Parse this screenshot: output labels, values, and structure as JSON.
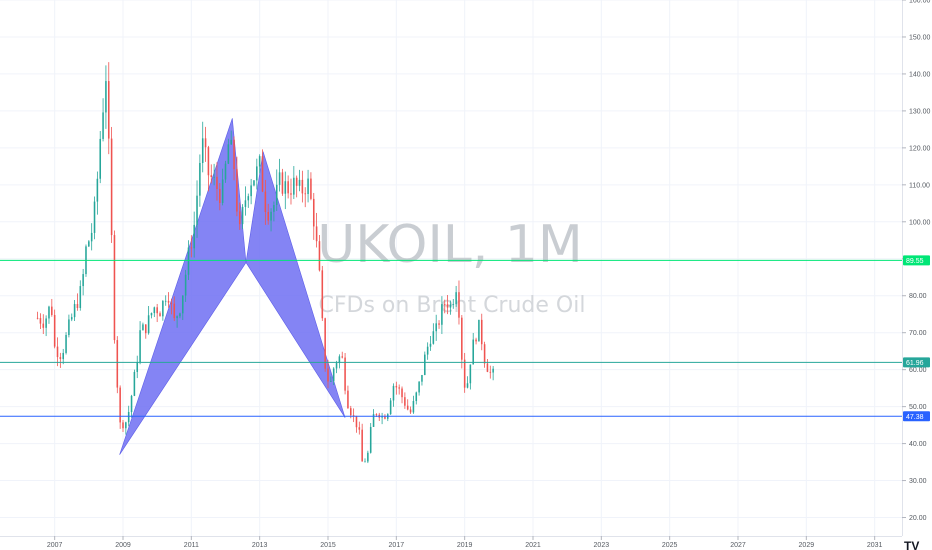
{
  "watermark": {
    "symbol": "UKOIL, 1M",
    "description": "CFDs on Brent Crude Oil"
  },
  "colors": {
    "up": "#26a69a",
    "down": "#ef5350",
    "pattern_fill": "#6f6ff2",
    "line_green": "#00e676",
    "line_teal": "#26a69a",
    "line_blue": "#2962ff"
  },
  "chart_data": {
    "type": "candlestick",
    "x_range": [
      2005.4,
      2031.8
    ],
    "y_range": [
      15,
      160
    ],
    "x_ticks": [
      "2007",
      "2009",
      "2011",
      "2013",
      "2015",
      "2017",
      "2019",
      "2021",
      "2023",
      "2025",
      "2027",
      "2029",
      "2031"
    ],
    "y_ticks": [
      "20.00",
      "30.00",
      "40.00",
      "50.00",
      "60.00",
      "70.00",
      "80.00",
      "90.00",
      "100.00",
      "110.00",
      "120.00",
      "130.00",
      "140.00",
      "150.00",
      "160.00"
    ],
    "horizontal_lines": [
      {
        "name": "line-green",
        "value": 89.55,
        "label": "89.55",
        "color": "#00e676"
      },
      {
        "name": "line-teal",
        "value": 61.96,
        "label": "61.96",
        "color": "#26a69a"
      },
      {
        "name": "line-blue",
        "value": 47.38,
        "label": "47.38",
        "color": "#2962ff"
      }
    ],
    "pattern_points": [
      {
        "t": 2008.9,
        "v": 37
      },
      {
        "t": 2012.2,
        "v": 128
      },
      {
        "t": 2012.6,
        "v": 89
      },
      {
        "t": 2013.1,
        "v": 119
      },
      {
        "t": 2015.5,
        "v": 47
      }
    ],
    "closes": [
      {
        "t": 2006.5,
        "v": 74
      },
      {
        "t": 2006.7,
        "v": 73
      },
      {
        "t": 2006.9,
        "v": 78
      },
      {
        "t": 2007.0,
        "v": 66
      },
      {
        "t": 2007.2,
        "v": 64
      },
      {
        "t": 2007.4,
        "v": 71
      },
      {
        "t": 2007.6,
        "v": 77
      },
      {
        "t": 2007.8,
        "v": 82
      },
      {
        "t": 2007.9,
        "v": 92
      },
      {
        "t": 2008.1,
        "v": 98
      },
      {
        "t": 2008.2,
        "v": 105
      },
      {
        "t": 2008.35,
        "v": 125
      },
      {
        "t": 2008.5,
        "v": 140
      },
      {
        "t": 2008.6,
        "v": 115
      },
      {
        "t": 2008.75,
        "v": 70
      },
      {
        "t": 2008.9,
        "v": 45
      },
      {
        "t": 2009.1,
        "v": 46
      },
      {
        "t": 2009.2,
        "v": 50
      },
      {
        "t": 2009.4,
        "v": 62
      },
      {
        "t": 2009.5,
        "v": 70
      },
      {
        "t": 2009.7,
        "v": 72
      },
      {
        "t": 2009.9,
        "v": 77
      },
      {
        "t": 2010.1,
        "v": 76
      },
      {
        "t": 2010.3,
        "v": 82
      },
      {
        "t": 2010.5,
        "v": 73
      },
      {
        "t": 2010.7,
        "v": 78
      },
      {
        "t": 2010.9,
        "v": 90
      },
      {
        "t": 2011.1,
        "v": 100
      },
      {
        "t": 2011.3,
        "v": 122
      },
      {
        "t": 2011.5,
        "v": 113
      },
      {
        "t": 2011.7,
        "v": 110
      },
      {
        "t": 2011.9,
        "v": 107
      },
      {
        "t": 2012.1,
        "v": 122
      },
      {
        "t": 2012.25,
        "v": 115
      },
      {
        "t": 2012.4,
        "v": 96
      },
      {
        "t": 2012.55,
        "v": 105
      },
      {
        "t": 2012.7,
        "v": 111
      },
      {
        "t": 2012.9,
        "v": 113
      },
      {
        "t": 2013.0,
        "v": 115
      },
      {
        "t": 2013.2,
        "v": 103
      },
      {
        "t": 2013.4,
        "v": 104
      },
      {
        "t": 2013.6,
        "v": 111
      },
      {
        "t": 2013.8,
        "v": 109
      },
      {
        "t": 2014.0,
        "v": 110
      },
      {
        "t": 2014.2,
        "v": 108
      },
      {
        "t": 2014.4,
        "v": 111
      },
      {
        "t": 2014.6,
        "v": 100
      },
      {
        "t": 2014.75,
        "v": 85
      },
      {
        "t": 2014.9,
        "v": 62
      },
      {
        "t": 2015.05,
        "v": 55
      },
      {
        "t": 2015.2,
        "v": 62
      },
      {
        "t": 2015.4,
        "v": 64
      },
      {
        "t": 2015.55,
        "v": 52
      },
      {
        "t": 2015.7,
        "v": 48
      },
      {
        "t": 2015.9,
        "v": 44
      },
      {
        "t": 2016.0,
        "v": 35
      },
      {
        "t": 2016.15,
        "v": 36
      },
      {
        "t": 2016.3,
        "v": 47
      },
      {
        "t": 2016.45,
        "v": 49
      },
      {
        "t": 2016.6,
        "v": 47
      },
      {
        "t": 2016.75,
        "v": 49
      },
      {
        "t": 2016.9,
        "v": 56
      },
      {
        "t": 2017.05,
        "v": 55
      },
      {
        "t": 2017.2,
        "v": 52
      },
      {
        "t": 2017.4,
        "v": 48
      },
      {
        "t": 2017.55,
        "v": 52
      },
      {
        "t": 2017.7,
        "v": 57
      },
      {
        "t": 2017.85,
        "v": 64
      },
      {
        "t": 2018.0,
        "v": 69
      },
      {
        "t": 2018.15,
        "v": 70
      },
      {
        "t": 2018.3,
        "v": 75
      },
      {
        "t": 2018.45,
        "v": 79
      },
      {
        "t": 2018.6,
        "v": 77
      },
      {
        "t": 2018.75,
        "v": 83
      },
      {
        "t": 2018.85,
        "v": 75
      },
      {
        "t": 2018.95,
        "v": 58
      },
      {
        "t": 2019.05,
        "v": 54
      },
      {
        "t": 2019.15,
        "v": 62
      },
      {
        "t": 2019.3,
        "v": 69
      },
      {
        "t": 2019.45,
        "v": 72
      },
      {
        "t": 2019.55,
        "v": 64
      },
      {
        "t": 2019.7,
        "v": 60
      },
      {
        "t": 2019.8,
        "v": 58
      },
      {
        "t": 2019.85,
        "v": 59
      }
    ]
  }
}
